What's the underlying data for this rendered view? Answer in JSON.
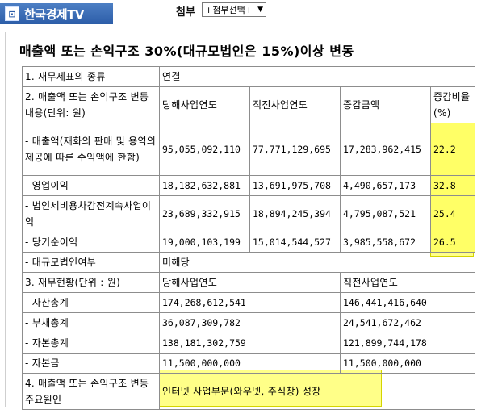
{
  "header": {
    "logo_icon": "logo-square-icon",
    "logo_text": "한국경제TV",
    "attach_label": "첨부",
    "attach_select_value": "+첨부선택+"
  },
  "doc": {
    "title": "매출액 또는 손익구조 30%(대규모법인은 15%)이상 변동"
  },
  "table": {
    "r1": {
      "label": "1. 재무제표의 종류",
      "value": "연결"
    },
    "r2": {
      "label": "2. 매출액 또는 손익구조 변동내용(단위: 원)",
      "h_cur": "당해사업연도",
      "h_prev": "직전사업연도",
      "h_diff": "증감금액",
      "h_rate": "증감비율 (%)"
    },
    "r3": {
      "label": "- 매출액(재화의 판매 및 용역의 제공에 따른 수익액에 한함)",
      "cur": "95,055,092,110",
      "prev": "77,771,129,695",
      "diff": "17,283,962,415",
      "rate": "22.2"
    },
    "r4": {
      "label": "- 영업이익",
      "cur": "18,182,632,881",
      "prev": "13,691,975,708",
      "diff": "4,490,657,173",
      "rate": "32.8"
    },
    "r5": {
      "label": "- 법인세비용차감전계속사업이익",
      "cur": "23,689,332,915",
      "prev": "18,894,245,394",
      "diff": "4,795,087,521",
      "rate": "25.4"
    },
    "r6": {
      "label": "- 당기순이익",
      "cur": "19,000,103,199",
      "prev": "15,014,544,527",
      "diff": "3,985,558,672",
      "rate": "26.5"
    },
    "r7": {
      "label": "- 대규모법인여부",
      "value": "미해당"
    },
    "r8": {
      "label": "3. 재무현황(단위 : 원)",
      "h_cur": "당해사업연도",
      "h_prev": "직전사업연도"
    },
    "r9": {
      "label": "- 자산총계",
      "cur": "174,268,612,541",
      "prev": "146,441,416,640"
    },
    "r10": {
      "label": "- 부채총계",
      "cur": "36,087,309,782",
      "prev": "24,541,672,462"
    },
    "r11": {
      "label": "- 자본총계",
      "cur": "138,181,302,759",
      "prev": "121,899,744,178"
    },
    "r12": {
      "label": "- 자본금",
      "cur": "11,500,000,000",
      "prev": "11,500,000,000"
    },
    "r13": {
      "label": "4. 매출액 또는 손익구조 변동 주요원인",
      "value": "인터넷 사업부문(와우넷, 주식창) 성장"
    }
  },
  "colors": {
    "logo_bg": "#2c5da8",
    "highlight": "#ffff66",
    "border": "#8d8d8d"
  }
}
